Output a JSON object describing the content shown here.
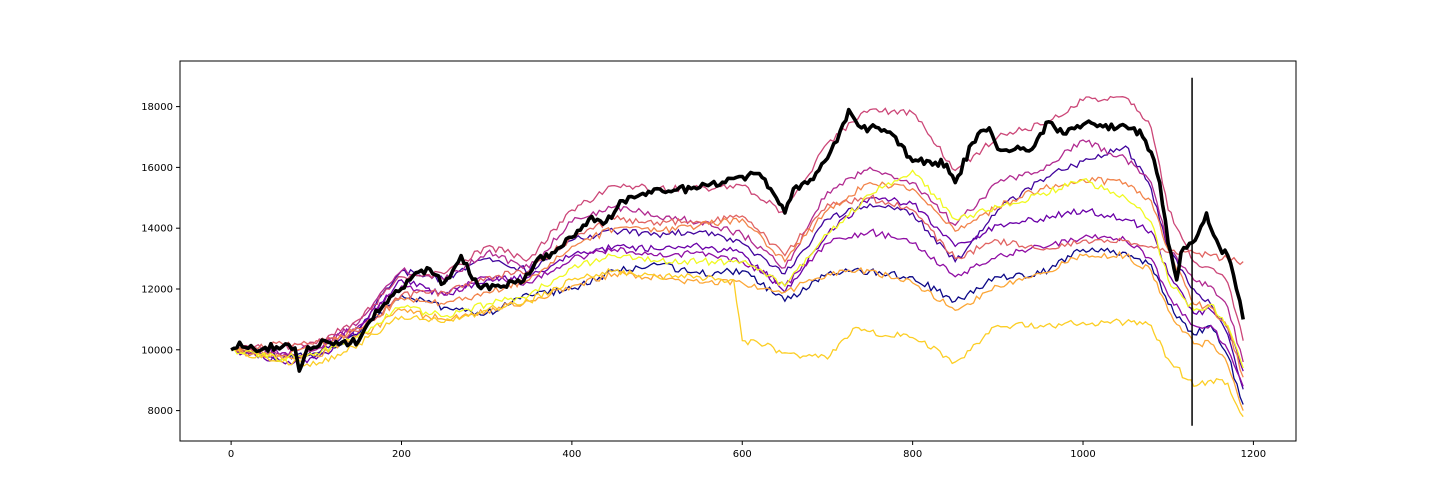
{
  "chart_data": {
    "type": "line",
    "title": "",
    "xlabel": "",
    "ylabel": "",
    "xlim": [
      -60,
      1250
    ],
    "ylim": [
      7000,
      19500
    ],
    "x_ticks": [
      0,
      200,
      400,
      600,
      800,
      1000,
      1200
    ],
    "y_ticks": [
      8000,
      10000,
      12000,
      14000,
      16000,
      18000
    ],
    "grid": false,
    "legend": "none",
    "vertical_line": {
      "x": 1128,
      "y_range": [
        7500,
        18950
      ],
      "color": "#000000"
    },
    "highlight_series": {
      "color": "#000000",
      "x": [
        0,
        10,
        20,
        40,
        60,
        75,
        80,
        90,
        110,
        130,
        150,
        170,
        190,
        210,
        230,
        250,
        270,
        290,
        310,
        340,
        360,
        380,
        400,
        420,
        440,
        460,
        480,
        500,
        520,
        540,
        560,
        580,
        600,
        620,
        640,
        650,
        660,
        680,
        700,
        715,
        725,
        740,
        760,
        780,
        800,
        820,
        840,
        850,
        870,
        880,
        890,
        900,
        920,
        940,
        960,
        980,
        1000,
        1020,
        1040,
        1060,
        1070,
        1080,
        1090,
        1100,
        1110,
        1115,
        1125,
        1135,
        1145,
        1150,
        1160,
        1170,
        1180,
        1188
      ],
      "values": [
        10000,
        10250,
        10050,
        10080,
        10100,
        10060,
        9300,
        10100,
        10300,
        10250,
        10300,
        11300,
        11800,
        12300,
        12700,
        12200,
        13100,
        12100,
        12100,
        12200,
        13000,
        13200,
        13700,
        14300,
        14200,
        14900,
        15100,
        15300,
        15250,
        15300,
        15400,
        15500,
        15700,
        15800,
        15000,
        14500,
        15300,
        15600,
        16300,
        17200,
        17900,
        17300,
        17300,
        17000,
        16200,
        16200,
        16100,
        15500,
        16800,
        17200,
        17300,
        16600,
        16600,
        16600,
        17500,
        17100,
        17400,
        17400,
        17300,
        17300,
        17000,
        16500,
        15500,
        13500,
        12300,
        13200,
        13500,
        13800,
        14500,
        14000,
        13400,
        13100,
        12000,
        11000
      ]
    },
    "series": [
      {
        "color": "#0d0887",
        "x": [
          0,
          60,
          100,
          150,
          200,
          250,
          300,
          350,
          400,
          450,
          500,
          550,
          600,
          650,
          700,
          750,
          800,
          850,
          900,
          950,
          1000,
          1050,
          1080,
          1100,
          1130,
          1150,
          1170,
          1188
        ],
        "values": [
          10000,
          9800,
          9800,
          10500,
          11800,
          11400,
          11200,
          11800,
          12000,
          12600,
          12800,
          12500,
          12600,
          11600,
          12500,
          12600,
          12400,
          11600,
          12400,
          12500,
          13300,
          13200,
          12800,
          11500,
          10500,
          10800,
          9800,
          8200
        ]
      },
      {
        "color": "#41049d",
        "x": [
          0,
          60,
          100,
          150,
          200,
          250,
          300,
          350,
          400,
          450,
          500,
          550,
          600,
          650,
          700,
          750,
          800,
          850,
          900,
          950,
          1000,
          1050,
          1080,
          1100,
          1130,
          1150,
          1170,
          1188
        ],
        "values": [
          10000,
          9700,
          9900,
          10700,
          12600,
          12300,
          13000,
          12600,
          13600,
          13900,
          13800,
          13900,
          13500,
          12500,
          14300,
          14800,
          14500,
          12900,
          14600,
          15600,
          16200,
          16700,
          15300,
          13300,
          12000,
          11500,
          10500,
          8700
        ]
      },
      {
        "color": "#6a00a8",
        "x": [
          0,
          60,
          100,
          150,
          200,
          250,
          300,
          350,
          400,
          450,
          500,
          550,
          600,
          650,
          700,
          750,
          800,
          850,
          900,
          950,
          1000,
          1050,
          1080,
          1100,
          1130,
          1150,
          1170,
          1188
        ],
        "values": [
          10000,
          9600,
          9700,
          10600,
          12300,
          11800,
          12300,
          12400,
          13100,
          13400,
          13300,
          13400,
          13200,
          11900,
          13800,
          15000,
          14800,
          13400,
          14100,
          14300,
          14600,
          14300,
          13900,
          12500,
          11200,
          11300,
          10700,
          9300
        ]
      },
      {
        "color": "#8f0da4",
        "x": [
          0,
          60,
          100,
          150,
          200,
          250,
          300,
          350,
          400,
          450,
          500,
          550,
          600,
          650,
          700,
          750,
          800,
          850,
          900,
          950,
          1000,
          1050,
          1080,
          1100,
          1130,
          1150,
          1170,
          1188
        ],
        "values": [
          10000,
          9900,
          10100,
          10800,
          12100,
          11800,
          12400,
          12200,
          13000,
          13300,
          13100,
          13200,
          12900,
          12100,
          13500,
          13900,
          13500,
          12400,
          13100,
          13400,
          13700,
          13600,
          13000,
          11800,
          10800,
          10800,
          10000,
          8800
        ]
      },
      {
        "color": "#b12a90",
        "x": [
          0,
          60,
          100,
          150,
          200,
          250,
          300,
          350,
          400,
          450,
          500,
          550,
          600,
          650,
          700,
          750,
          800,
          850,
          900,
          950,
          1000,
          1050,
          1080,
          1100,
          1130,
          1150,
          1170,
          1188
        ],
        "values": [
          10000,
          9800,
          10000,
          10900,
          12600,
          12300,
          13200,
          12700,
          14200,
          14700,
          14400,
          14200,
          13800,
          12700,
          15200,
          16000,
          15500,
          14100,
          15500,
          15900,
          16900,
          16300,
          15500,
          13400,
          12300,
          12100,
          11400,
          9600
        ]
      },
      {
        "color": "#cc4778",
        "x": [
          0,
          60,
          100,
          150,
          200,
          250,
          300,
          350,
          400,
          450,
          500,
          550,
          600,
          650,
          700,
          750,
          800,
          850,
          900,
          950,
          1000,
          1050,
          1080,
          1100,
          1130,
          1150,
          1170,
          1188
        ],
        "values": [
          10000,
          10100,
          10200,
          11000,
          12400,
          12500,
          13400,
          13000,
          14600,
          15400,
          15300,
          15300,
          15400,
          14500,
          16800,
          17900,
          17800,
          15900,
          17000,
          17400,
          18200,
          18300,
          17300,
          14600,
          12900,
          12700,
          12200,
          10300
        ]
      },
      {
        "color": "#e16462",
        "x": [
          0,
          60,
          100,
          150,
          200,
          250,
          300,
          350,
          400,
          450,
          500,
          550,
          600,
          650,
          700,
          750,
          800,
          850,
          900,
          950,
          1000,
          1050,
          1080,
          1100,
          1130,
          1150,
          1170,
          1188
        ],
        "values": [
          10000,
          10200,
          10300,
          10600,
          11800,
          11900,
          12400,
          12600,
          13700,
          14300,
          14200,
          14200,
          14400,
          13100,
          14800,
          15000,
          14600,
          13000,
          13600,
          13300,
          13600,
          13600,
          13400,
          13200,
          13200,
          13100,
          13000,
          12900
        ]
      },
      {
        "color": "#f2844b",
        "x": [
          0,
          60,
          100,
          150,
          200,
          250,
          300,
          350,
          400,
          450,
          500,
          550,
          600,
          650,
          700,
          750,
          800,
          850,
          900,
          950,
          1000,
          1050,
          1080,
          1100,
          1130,
          1150,
          1170,
          1188
        ],
        "values": [
          10000,
          9800,
          10100,
          10700,
          11700,
          11500,
          11900,
          12300,
          13400,
          14000,
          13900,
          14100,
          14300,
          12900,
          14600,
          15500,
          15300,
          13900,
          14700,
          15300,
          15600,
          15500,
          14900,
          13300,
          11500,
          11400,
          10700,
          9100
        ]
      },
      {
        "color": "#fca636",
        "x": [
          0,
          60,
          100,
          150,
          200,
          250,
          300,
          350,
          400,
          450,
          500,
          550,
          600,
          650,
          700,
          750,
          800,
          850,
          900,
          950,
          1000,
          1050,
          1080,
          1100,
          1130,
          1150,
          1170,
          1188
        ],
        "values": [
          10000,
          9700,
          9800,
          10400,
          11300,
          11000,
          11300,
          11600,
          12100,
          12500,
          12400,
          12200,
          12200,
          11900,
          12500,
          12600,
          12200,
          11300,
          12100,
          12500,
          13100,
          13100,
          12600,
          11300,
          10200,
          10200,
          9500,
          8000
        ]
      },
      {
        "color": "#fcce25",
        "x": [
          0,
          60,
          100,
          150,
          200,
          250,
          300,
          350,
          400,
          450,
          500,
          550,
          590,
          600,
          620,
          650,
          700,
          730,
          750,
          800,
          850,
          900,
          950,
          1000,
          1050,
          1080,
          1100,
          1130,
          1150,
          1170,
          1188
        ],
        "values": [
          10000,
          9600,
          9500,
          10200,
          11100,
          10900,
          11300,
          11600,
          12300,
          12600,
          12400,
          12400,
          12300,
          10300,
          10200,
          9900,
          9700,
          10700,
          10600,
          10400,
          9600,
          10800,
          10800,
          10900,
          10900,
          10800,
          9700,
          8800,
          9000,
          8900,
          7800
        ]
      },
      {
        "color": "#f0f921",
        "x": [
          0,
          60,
          100,
          150,
          200,
          250,
          300,
          350,
          400,
          450,
          500,
          550,
          600,
          650,
          700,
          750,
          800,
          850,
          900,
          950,
          1000,
          1050,
          1080,
          1100,
          1130,
          1150,
          1170,
          1188
        ],
        "values": [
          10000,
          9700,
          9900,
          10500,
          11400,
          11100,
          11500,
          11800,
          12700,
          13100,
          12900,
          12900,
          12900,
          12100,
          13800,
          15100,
          15900,
          14300,
          14700,
          15100,
          15600,
          15000,
          14200,
          12300,
          11300,
          11500,
          10800,
          9400
        ]
      }
    ]
  }
}
